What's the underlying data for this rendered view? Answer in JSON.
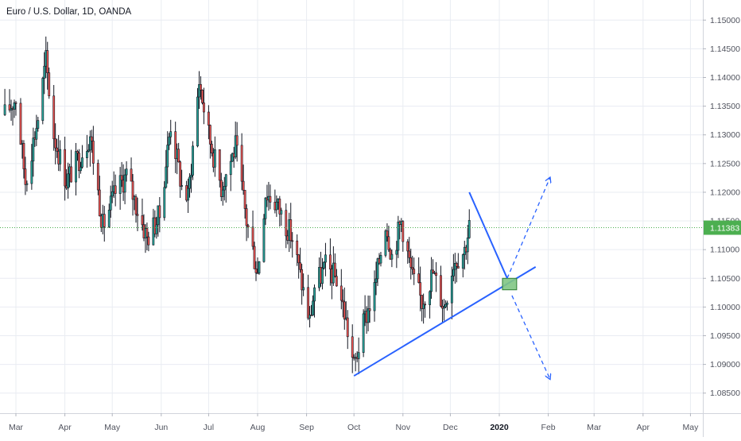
{
  "chart_data": {
    "type": "candlestick",
    "title": "Euro / U.S. Dollar, 1D, OANDA",
    "ylim": [
      1.0815,
      1.1535
    ],
    "yticks": [
      "1.15000",
      "1.14500",
      "1.14000",
      "1.13500",
      "1.13000",
      "1.12500",
      "1.12000",
      "1.11500",
      "1.11000",
      "1.10500",
      "1.10000",
      "1.09500",
      "1.09000",
      "1.08500"
    ],
    "xticks": [
      {
        "label": "Mar",
        "date": "2019-03-01"
      },
      {
        "label": "Apr",
        "date": "2019-04-01"
      },
      {
        "label": "May",
        "date": "2019-05-01"
      },
      {
        "label": "Jun",
        "date": "2019-06-01"
      },
      {
        "label": "Jul",
        "date": "2019-07-01"
      },
      {
        "label": "Aug",
        "date": "2019-08-01"
      },
      {
        "label": "Sep",
        "date": "2019-09-01"
      },
      {
        "label": "Oct",
        "date": "2019-10-01"
      },
      {
        "label": "Nov",
        "date": "2019-11-01"
      },
      {
        "label": "Dec",
        "date": "2019-12-01"
      },
      {
        "label": "2020",
        "date": "2020-01-01",
        "bold": true
      },
      {
        "label": "Feb",
        "date": "2020-02-01"
      },
      {
        "label": "Mar",
        "date": "2020-03-01"
      },
      {
        "label": "Apr",
        "date": "2020-04-01"
      },
      {
        "label": "May",
        "date": "2020-05-01"
      }
    ],
    "last_price": {
      "value": 1.11383,
      "label": "1.11383",
      "color": "#4caf50"
    },
    "colors": {
      "up": "#26a69a",
      "down": "#ef5350",
      "body": "#131722",
      "drawing": "#2962ff",
      "grid": "#e9ecf2"
    },
    "price_path": [
      [
        "2019-02-22",
        1.1335
      ],
      [
        "2019-03-01",
        1.1365
      ],
      [
        "2019-03-07",
        1.122
      ],
      [
        "2019-03-15",
        1.133
      ],
      [
        "2019-03-20",
        1.143
      ],
      [
        "2019-03-25",
        1.13
      ],
      [
        "2019-04-02",
        1.122
      ],
      [
        "2019-04-10",
        1.126
      ],
      [
        "2019-04-17",
        1.13
      ],
      [
        "2019-04-25",
        1.114
      ],
      [
        "2019-05-03",
        1.12
      ],
      [
        "2019-05-10",
        1.123
      ],
      [
        "2019-05-17",
        1.117
      ],
      [
        "2019-05-23",
        1.112
      ],
      [
        "2019-05-31",
        1.116
      ],
      [
        "2019-06-07",
        1.132
      ],
      [
        "2019-06-14",
        1.121
      ],
      [
        "2019-06-18",
        1.119
      ],
      [
        "2019-06-25",
        1.1395
      ],
      [
        "2019-07-01",
        1.13
      ],
      [
        "2019-07-09",
        1.121
      ],
      [
        "2019-07-18",
        1.128
      ],
      [
        "2019-07-25",
        1.115
      ],
      [
        "2019-08-01",
        1.106
      ],
      [
        "2019-08-06",
        1.12
      ],
      [
        "2019-08-13",
        1.118
      ],
      [
        "2019-08-23",
        1.112
      ],
      [
        "2019-09-03",
        1.0975
      ],
      [
        "2019-09-06",
        1.1035
      ],
      [
        "2019-09-13",
        1.107
      ],
      [
        "2019-09-20",
        1.105
      ],
      [
        "2019-09-25",
        1.099
      ],
      [
        "2019-10-01",
        1.0895
      ],
      [
        "2019-10-08",
        1.098
      ],
      [
        "2019-10-14",
        1.103
      ],
      [
        "2019-10-21",
        1.115
      ],
      [
        "2019-10-25",
        1.109
      ],
      [
        "2019-10-31",
        1.115
      ],
      [
        "2019-11-07",
        1.105
      ],
      [
        "2019-11-13",
        1.101
      ],
      [
        "2019-11-20",
        1.106
      ],
      [
        "2019-11-27",
        1.1
      ],
      [
        "2019-12-03",
        1.108
      ],
      [
        "2019-12-10",
        1.11
      ],
      [
        "2019-12-13",
        1.114
      ]
    ],
    "drawings": [
      {
        "name": "support-trendline",
        "type": "line",
        "points": [
          [
            "2019-10-01",
            1.088
          ],
          [
            "2020-01-24",
            1.107
          ]
        ]
      },
      {
        "name": "projection-up-leg",
        "type": "line",
        "points": [
          [
            "2019-12-13",
            1.12
          ],
          [
            "2020-01-06",
            1.105
          ]
        ]
      },
      {
        "name": "target-zone",
        "type": "box",
        "x0": "2020-01-03",
        "x1": "2020-01-12",
        "y0": 1.103,
        "y1": 1.105,
        "fill": "#81c784",
        "stroke": "#2e7d32"
      },
      {
        "name": "bullish-scenario-arrow",
        "type": "dashed-arrow",
        "points": [
          [
            "2020-01-06",
            1.105
          ],
          [
            "2020-02-02",
            1.1225
          ]
        ]
      },
      {
        "name": "bearish-scenario-arrow",
        "type": "dashed-arrow",
        "points": [
          [
            "2020-01-09",
            1.102
          ],
          [
            "2020-02-02",
            1.0875
          ]
        ]
      }
    ]
  }
}
